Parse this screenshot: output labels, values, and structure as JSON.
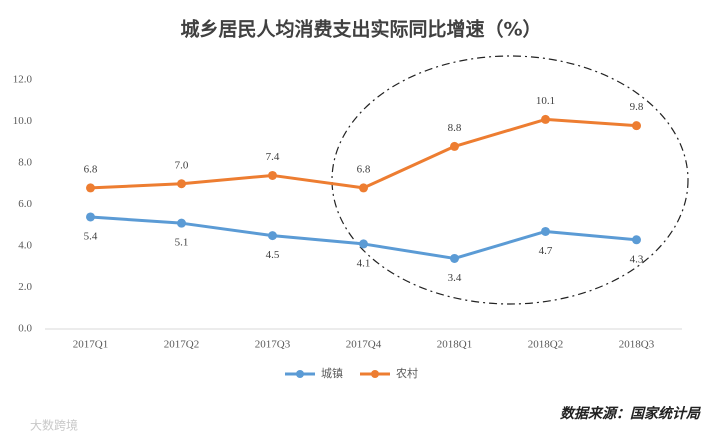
{
  "chart_data": {
    "type": "line",
    "title": "城乡居民人均消费支出实际同比增速（%）",
    "categories": [
      "2017Q1",
      "2017Q2",
      "2017Q3",
      "2017Q4",
      "2018Q1",
      "2018Q2",
      "2018Q3"
    ],
    "series": [
      {
        "name": "城镇",
        "color": "#5b9bd5",
        "values": [
          5.4,
          5.1,
          4.5,
          4.1,
          3.4,
          4.7,
          4.3
        ],
        "label_position": "below"
      },
      {
        "name": "农村",
        "color": "#ed7d31",
        "values": [
          6.8,
          7.0,
          7.4,
          6.8,
          8.8,
          10.1,
          9.8
        ],
        "value_labels": [
          "6.8",
          "7.0",
          "7.4",
          "6.8",
          "8.8",
          "10.1",
          "9.8"
        ],
        "label_position": "above"
      }
    ],
    "ylim": [
      0,
      12
    ],
    "yticks": [
      {
        "value": 0,
        "label": "0.0"
      },
      {
        "value": 2,
        "label": "2.0"
      },
      {
        "value": 4,
        "label": "4.0"
      },
      {
        "value": 6,
        "label": "6.0"
      },
      {
        "value": 8,
        "label": "8.0"
      },
      {
        "value": 10,
        "label": "10.0"
      },
      {
        "value": 12,
        "label": "12.0"
      }
    ],
    "grid": false,
    "legend": "bottom",
    "source": "数据来源：国家统计局",
    "watermark": "大数跨境"
  }
}
